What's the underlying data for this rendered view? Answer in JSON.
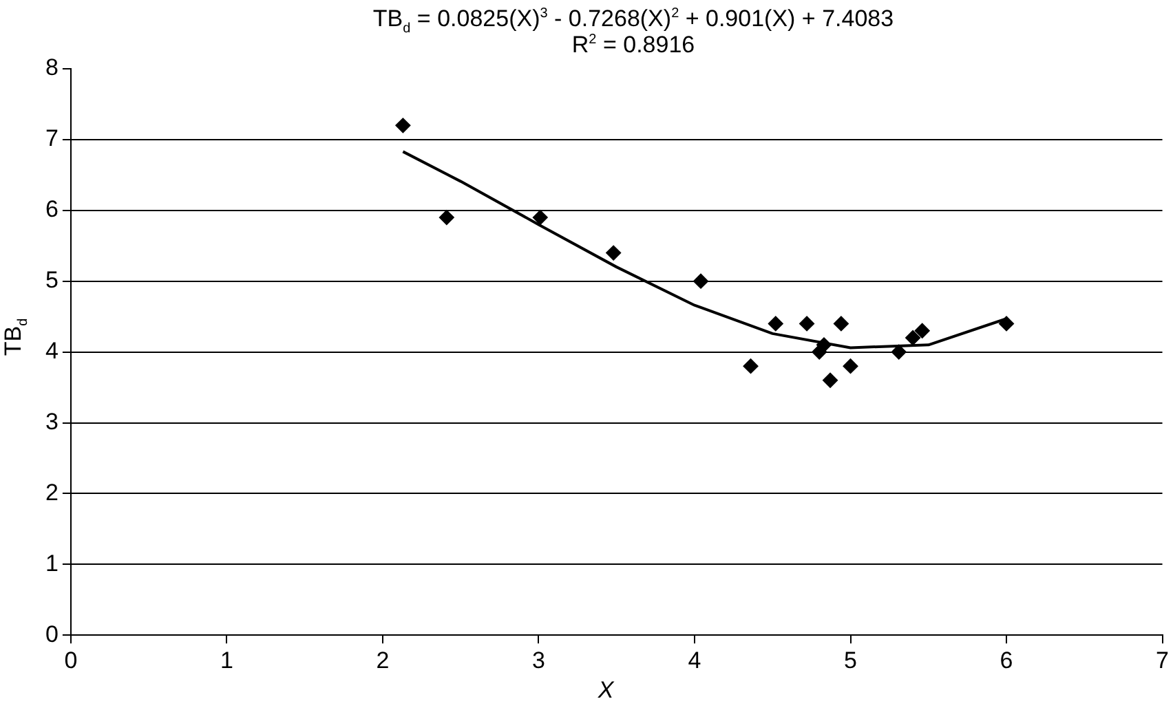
{
  "chart_data": {
    "type": "scatter",
    "title": "TB$_{d}$ = 0.0825(X)$^{3}$ - 0.7268(X)$^{2}$ + 0.901(X) + 7.4083",
    "subtitle": "R$^{2}$ = 0.8916",
    "xlabel": "X",
    "ylabel": "TB$_{d}$",
    "xlim": [
      0,
      7
    ],
    "xticks": [
      0,
      1,
      2,
      3,
      4,
      5,
      6,
      7
    ],
    "ylim": [
      0,
      8
    ],
    "yticks": [
      0,
      1,
      2,
      3,
      4,
      5,
      6,
      7,
      8
    ],
    "grid": "y",
    "legend": false,
    "marker": "diamond",
    "series": [
      {
        "type": "scatter",
        "color": "#000000",
        "x": [
          2.13,
          2.41,
          3.01,
          3.48,
          4.04,
          4.36,
          4.52,
          4.72,
          4.8,
          4.83,
          4.87,
          4.94,
          5.0,
          5.31,
          5.4,
          5.46,
          6.0
        ],
        "values": [
          7.2,
          5.9,
          5.9,
          5.4,
          5.0,
          3.8,
          4.4,
          4.4,
          4.0,
          4.1,
          3.6,
          4.4,
          3.8,
          4.0,
          4.2,
          4.3,
          4.4
        ]
      },
      {
        "type": "line",
        "color": "#000000",
        "marker": "none",
        "x": [
          2.13,
          2.5,
          3,
          3.5,
          4,
          4.5,
          5,
          5.5,
          6
        ],
        "values": [
          6.83,
          6.41,
          5.8,
          5.2,
          4.66,
          4.26,
          4.06,
          4.1,
          4.47
        ]
      }
    ]
  }
}
